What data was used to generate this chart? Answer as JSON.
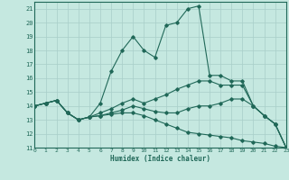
{
  "xlabel": "Humidex (Indice chaleur)",
  "xlim": [
    0,
    23
  ],
  "ylim": [
    11,
    21.5
  ],
  "xticks": [
    0,
    1,
    2,
    3,
    4,
    5,
    6,
    7,
    8,
    9,
    10,
    11,
    12,
    13,
    14,
    15,
    16,
    17,
    18,
    19,
    20,
    21,
    22,
    23
  ],
  "yticks": [
    11,
    12,
    13,
    14,
    15,
    16,
    17,
    18,
    19,
    20,
    21
  ],
  "bg_color": "#c5e8e0",
  "line_color": "#206858",
  "grid_color": "#a8cec8",
  "lines": [
    {
      "x": [
        0,
        1,
        2,
        3,
        4,
        5,
        6,
        7,
        8,
        9,
        10,
        11,
        12,
        13,
        14,
        15,
        16,
        17,
        18,
        19,
        20,
        21,
        22,
        23
      ],
      "y": [
        14,
        14.2,
        14.4,
        13.5,
        13.0,
        13.2,
        14.2,
        16.5,
        18.0,
        19.0,
        18.0,
        17.5,
        19.8,
        20.0,
        21.0,
        21.2,
        16.2,
        16.2,
        15.8,
        15.8,
        14.0,
        13.3,
        12.7,
        11.0
      ]
    },
    {
      "x": [
        0,
        1,
        2,
        3,
        4,
        5,
        6,
        7,
        8,
        9,
        10,
        11,
        12,
        13,
        14,
        15,
        16,
        17,
        18,
        19,
        20,
        21,
        22,
        23
      ],
      "y": [
        14,
        14.2,
        14.4,
        13.5,
        13.0,
        13.2,
        13.5,
        13.8,
        14.2,
        14.5,
        14.2,
        14.5,
        14.8,
        15.2,
        15.5,
        15.8,
        15.8,
        15.5,
        15.5,
        15.5,
        14.0,
        13.3,
        12.7,
        11.0
      ]
    },
    {
      "x": [
        0,
        1,
        2,
        3,
        4,
        5,
        6,
        7,
        8,
        9,
        10,
        11,
        12,
        13,
        14,
        15,
        16,
        17,
        18,
        19,
        20,
        21,
        22,
        23
      ],
      "y": [
        14,
        14.2,
        14.4,
        13.5,
        13.0,
        13.2,
        13.3,
        13.5,
        13.7,
        14.0,
        13.8,
        13.6,
        13.5,
        13.5,
        13.8,
        14.0,
        14.0,
        14.2,
        14.5,
        14.5,
        14.0,
        13.3,
        12.7,
        11.0
      ]
    },
    {
      "x": [
        0,
        1,
        2,
        3,
        4,
        5,
        6,
        7,
        8,
        9,
        10,
        11,
        12,
        13,
        14,
        15,
        16,
        17,
        18,
        19,
        20,
        21,
        22,
        23
      ],
      "y": [
        14,
        14.2,
        14.4,
        13.5,
        13.0,
        13.2,
        13.3,
        13.4,
        13.5,
        13.5,
        13.3,
        13.0,
        12.7,
        12.4,
        12.1,
        12.0,
        11.9,
        11.8,
        11.7,
        11.5,
        11.4,
        11.3,
        11.1,
        11.0
      ]
    }
  ]
}
